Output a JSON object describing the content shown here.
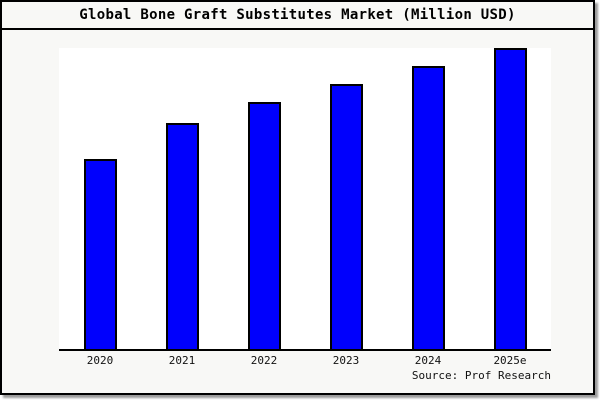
{
  "chart_data": {
    "type": "bar",
    "title": "Global Bone Graft Substitutes Market (Million USD)",
    "categories": [
      "2020",
      "2021",
      "2022",
      "2023",
      "2024",
      "2025e"
    ],
    "values": [
      63,
      75,
      82,
      88,
      94,
      100
    ],
    "value_note": "chart shows no y-axis or data labels; values are relative bar heights as percent of the tallest bar (2025e = 100)",
    "series_name": "Global Bone Graft Substitutes Market",
    "xlabel": "",
    "ylabel": "",
    "ylim_relative": [
      0,
      100
    ],
    "grid": false,
    "legend": false,
    "bar_color": "#0000fd",
    "bar_border_color": "#000000",
    "plot_background": "#ffffff",
    "canvas_background": "#f8f8f6",
    "frame_border_color": "#000000",
    "source": "Source: Prof Research"
  }
}
